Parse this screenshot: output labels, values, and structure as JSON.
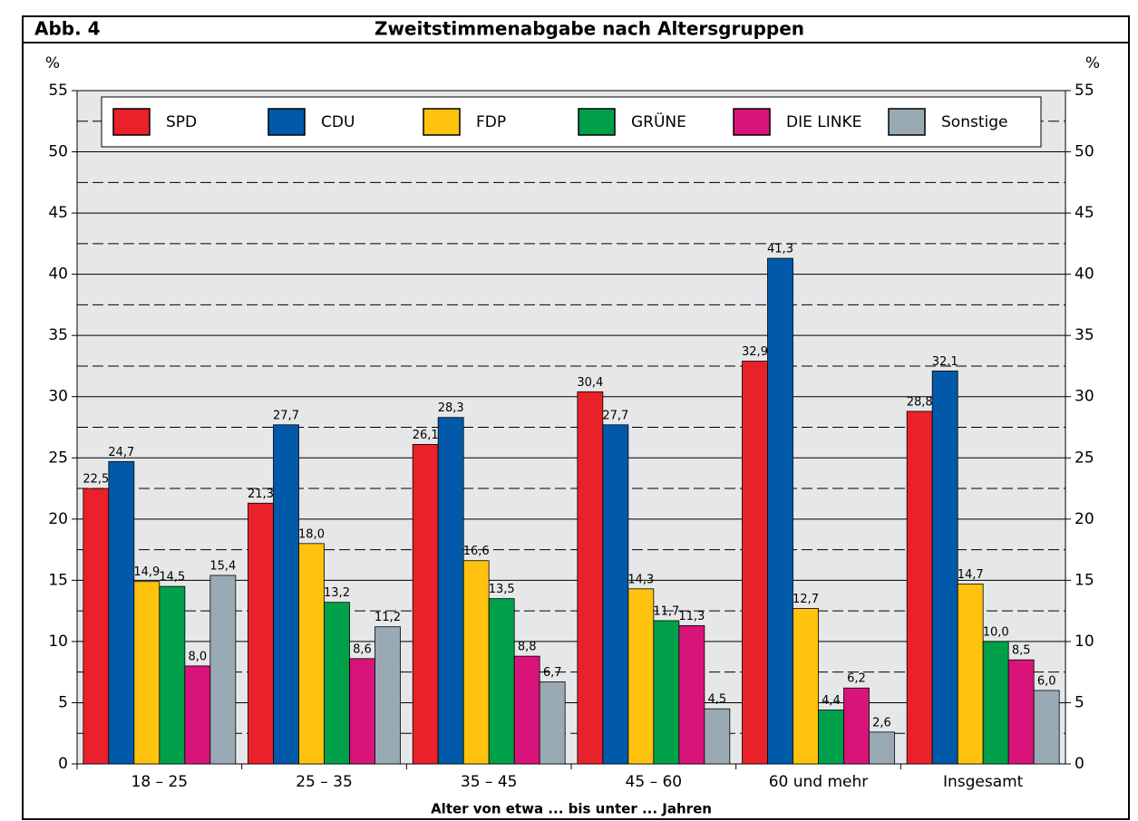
{
  "chart_data": {
    "type": "bar",
    "figure_label": "Abb. 4",
    "title": "Zweitstimmenabgabe nach Altersgruppen",
    "x_label": "Alter von etwa ... bis unter ... Jahren",
    "y_unit": "%",
    "categories": [
      "18 – 25",
      "25 – 35",
      "35 – 45",
      "45 – 60",
      "60 und mehr",
      "Insgesamt"
    ],
    "series": [
      {
        "name": "SPD",
        "color": "#e8212a",
        "values": [
          22.5,
          21.3,
          26.1,
          30.4,
          32.9,
          28.8
        ],
        "value_labels": [
          "22,5",
          "21,3",
          "26,1",
          "30,4",
          "32,9",
          "28,8"
        ]
      },
      {
        "name": "CDU",
        "color": "#005aa9",
        "values": [
          24.7,
          27.7,
          28.3,
          27.7,
          41.3,
          32.1
        ],
        "value_labels": [
          "24,7",
          "27,7",
          "28,3",
          "27,7",
          "41,3",
          "32,1"
        ]
      },
      {
        "name": "FDP",
        "color": "#ffc20e",
        "values": [
          14.9,
          18.0,
          16.6,
          14.3,
          12.7,
          14.7
        ],
        "value_labels": [
          "14,9",
          "18,0",
          "16,6",
          "14,3",
          "12,7",
          "14,7"
        ]
      },
      {
        "name": "GRÜNE",
        "color": "#00a04a",
        "values": [
          14.5,
          13.2,
          13.5,
          11.7,
          4.4,
          10.0
        ],
        "value_labels": [
          "14,5",
          "13,2",
          "13,5",
          "11,7",
          "4,4",
          "10,0"
        ]
      },
      {
        "name": "DIE LINKE",
        "color": "#d8147a",
        "values": [
          8.0,
          8.6,
          8.8,
          11.3,
          6.2,
          8.5
        ],
        "value_labels": [
          "8,0",
          "8,6",
          "8,8",
          "11,3",
          "6,2",
          "8,5"
        ]
      },
      {
        "name": "Sonstige",
        "color": "#9aaab5",
        "values": [
          15.4,
          11.2,
          6.7,
          4.5,
          2.6,
          6.0
        ],
        "value_labels": [
          "15,4",
          "11,2",
          "6,7",
          "4,5",
          "2,6",
          "6,0"
        ]
      }
    ],
    "ylim": [
      0,
      55
    ],
    "yticks": [
      0,
      5,
      10,
      15,
      20,
      25,
      30,
      35,
      40,
      45,
      50,
      55
    ],
    "grid": true,
    "legend": "top"
  }
}
